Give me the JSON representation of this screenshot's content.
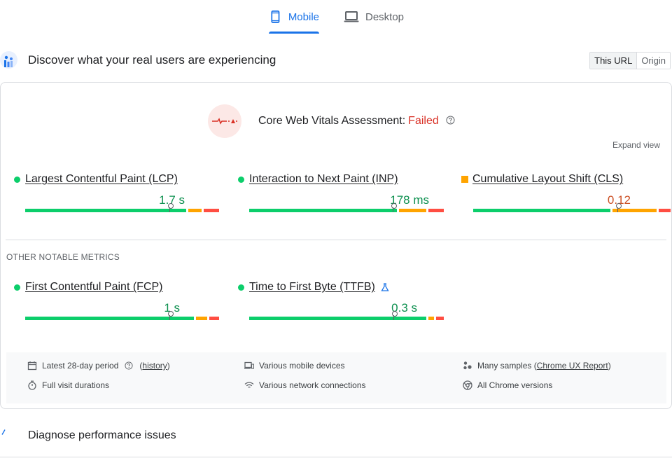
{
  "tabs": {
    "mobile": {
      "label": "Mobile",
      "icon": "smartphone-icon",
      "active": true
    },
    "desktop": {
      "label": "Desktop",
      "icon": "laptop-icon",
      "active": false
    }
  },
  "section": {
    "title": "Discover what your real users are experiencing",
    "icon": "field-data-icon",
    "toggle": {
      "this_url": "This URL",
      "origin": "Origin",
      "selected": "This URL"
    }
  },
  "assessment": {
    "label": "Core Web Vitals Assessment:",
    "status": "Failed",
    "status_color": "#d93025"
  },
  "expand_view": "Expand view",
  "core_metrics": [
    {
      "name": "Largest Contentful Paint (LCP)",
      "value": "1.7 s",
      "rating": "good",
      "distribution": [
        0.84,
        0.08,
        0.08
      ]
    },
    {
      "name": "Interaction to Next Paint (INP)",
      "value": "178 ms",
      "rating": "good",
      "distribution": [
        0.77,
        0.15,
        0.08
      ]
    },
    {
      "name": "Cumulative Layout Shift (CLS)",
      "value": "0.12",
      "rating": "needs-improvement",
      "distribution": [
        0.72,
        0.24,
        0.06
      ]
    }
  ],
  "other_metrics_label": "OTHER NOTABLE METRICS",
  "other_metrics": [
    {
      "name": "First Contentful Paint (FCP)",
      "value": "1 s",
      "rating": "good",
      "distribution": [
        0.88,
        0.07,
        0.05
      ]
    },
    {
      "name": "Time to First Byte (TTFB)",
      "value": "0.3 s",
      "rating": "good",
      "experimental": true,
      "distribution": [
        0.92,
        0.04,
        0.04
      ]
    }
  ],
  "colors": {
    "good": "#0cce6b",
    "good_text": "#0d904f",
    "needs_improvement": "#ffa400",
    "needs_improvement_text": "#c33300",
    "poor": "#ff4e42"
  },
  "info": {
    "period": "Latest 28-day period",
    "history": "history",
    "devices": "Various mobile devices",
    "samples_prefix": "Many samples (",
    "samples_link": "Chrome UX Report",
    "samples_suffix": ")",
    "visit": "Full visit durations",
    "network": "Various network connections",
    "chrome": "All Chrome versions"
  },
  "diagnose": {
    "title": "Diagnose performance issues"
  }
}
